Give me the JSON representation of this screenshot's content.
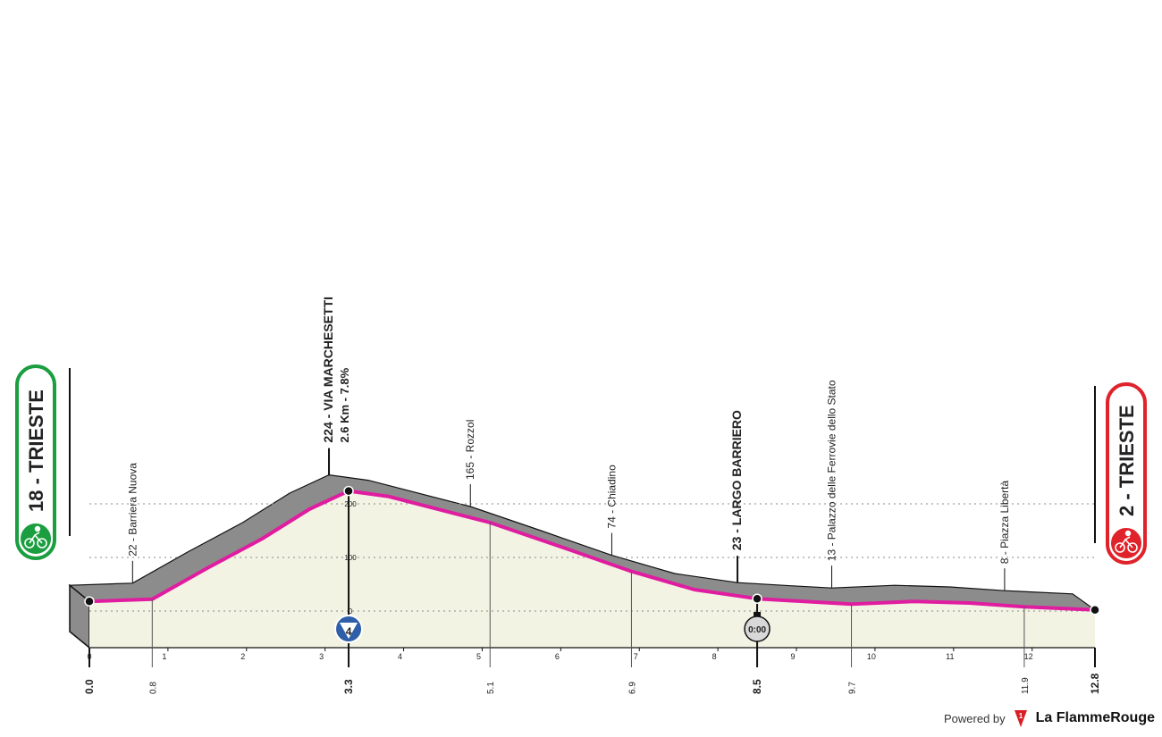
{
  "start": {
    "label": "18 - TRIESTE",
    "color": "#1a9e3f"
  },
  "finish": {
    "label": "2 - TRIESTE",
    "color": "#e0222a"
  },
  "branding": {
    "powered_by": "Powered by",
    "brand_name": "La FlammeRouge"
  },
  "colors": {
    "route_line": "#e01ca0",
    "profile_fill": "#f3f3e3",
    "side_fill": "#8c8c8c",
    "text": "#222222"
  },
  "chart_data": {
    "type": "area",
    "title": "",
    "xlabel": "",
    "ylabel": "",
    "xlim": [
      0,
      12.8
    ],
    "ylim": [
      0,
      280
    ],
    "y_ticks": [
      0,
      100,
      200
    ],
    "grid": true,
    "x_ticks": [
      0,
      1,
      2,
      3,
      4,
      5,
      6,
      7,
      8,
      9,
      10,
      11,
      12
    ],
    "profile": [
      {
        "km": 0.0,
        "alt": 18
      },
      {
        "km": 0.8,
        "alt": 22
      },
      {
        "km": 1.5,
        "alt": 80
      },
      {
        "km": 2.2,
        "alt": 135
      },
      {
        "km": 2.8,
        "alt": 190
      },
      {
        "km": 3.3,
        "alt": 224
      },
      {
        "km": 3.8,
        "alt": 214
      },
      {
        "km": 5.1,
        "alt": 165
      },
      {
        "km": 6.0,
        "alt": 120
      },
      {
        "km": 6.9,
        "alt": 74
      },
      {
        "km": 7.7,
        "alt": 40
      },
      {
        "km": 8.5,
        "alt": 23
      },
      {
        "km": 9.2,
        "alt": 17
      },
      {
        "km": 9.7,
        "alt": 13
      },
      {
        "km": 10.5,
        "alt": 18
      },
      {
        "km": 11.2,
        "alt": 15
      },
      {
        "km": 11.9,
        "alt": 8
      },
      {
        "km": 12.8,
        "alt": 2
      }
    ],
    "waypoints": [
      {
        "km": 0.8,
        "alt": 22,
        "label": "22 - Barriera Nuova",
        "km_label": "0.8"
      },
      {
        "km": 3.3,
        "alt": 224,
        "label": "224 - VIA MARCHESETTI",
        "sub": "2.6 Km - 7.8%",
        "km_label": "3.3",
        "major": true,
        "marker": "4"
      },
      {
        "km": 5.1,
        "alt": 165,
        "label": "165 - Rozzol",
        "km_label": "5.1"
      },
      {
        "km": 6.9,
        "alt": 74,
        "label": "74 - Chiadino",
        "km_label": "6.9"
      },
      {
        "km": 8.5,
        "alt": 23,
        "label": "23 - LARGO BARRIERO",
        "km_label": "8.5",
        "major": true,
        "marker": "0:00"
      },
      {
        "km": 9.7,
        "alt": 13,
        "label": "13 - Palazzo delle Ferrovie dello Stato",
        "km_label": "9.7"
      },
      {
        "km": 11.9,
        "alt": 8,
        "label": "8 - Piazza Libertà",
        "km_label": "11.9"
      }
    ],
    "start_km_label": "0.0",
    "finish_km_label": "12.8"
  }
}
